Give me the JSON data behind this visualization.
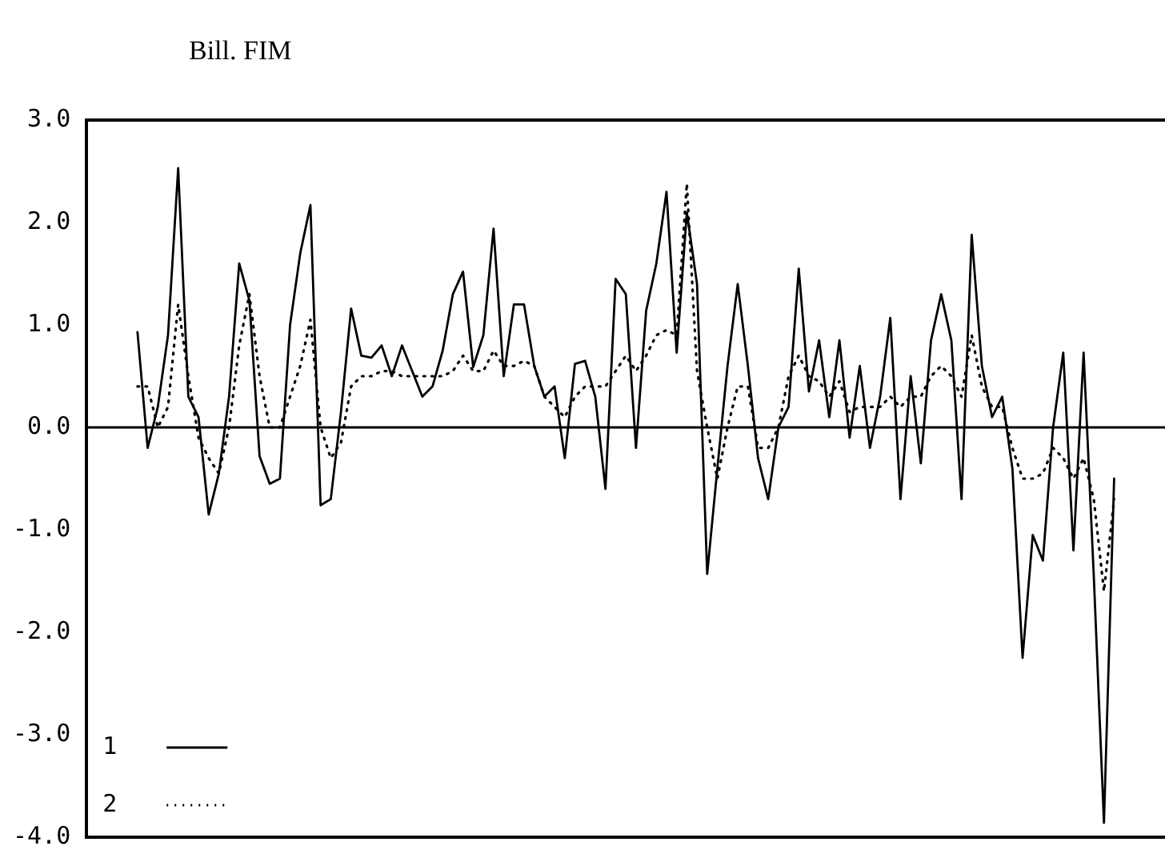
{
  "chart_data": {
    "type": "line",
    "title": "Bill. FIM",
    "categories": [
      null,
      null,
      null,
      null,
      null,
      null,
      null,
      null,
      null,
      null,
      null,
      null,
      null,
      null,
      null,
      null,
      null,
      null,
      null,
      null,
      null,
      null,
      null,
      null,
      null,
      null,
      null,
      null,
      null,
      null,
      null,
      null,
      null,
      null,
      null,
      null,
      null,
      null,
      null,
      null,
      null,
      null,
      null,
      null,
      null,
      null,
      null,
      null,
      null,
      null,
      null,
      null,
      null,
      null,
      null,
      null,
      null,
      null,
      null,
      null,
      null,
      null,
      null,
      null,
      null,
      null,
      null,
      null,
      null,
      null,
      null,
      null,
      null,
      null,
      null,
      null,
      null,
      null,
      null,
      null,
      null,
      null,
      null,
      null,
      null,
      null,
      null,
      null,
      null,
      null,
      null,
      null,
      null,
      null,
      null,
      null,
      null,
      null,
      null,
      null,
      null,
      null,
      null,
      null,
      null,
      null,
      null
    ],
    "series": [
      {
        "name": "1",
        "color": "#000000",
        "line_style": "solid",
        "values": [
          null,
          null,
          null,
          null,
          null,
          0.93,
          -0.2,
          0.2,
          0.9,
          2.53,
          0.3,
          0.1,
          -0.85,
          -0.45,
          0.3,
          1.6,
          1.24,
          -0.28,
          -0.55,
          -0.5,
          1.0,
          1.7,
          2.17,
          -0.76,
          -0.7,
          0.15,
          1.16,
          0.7,
          0.68,
          0.8,
          0.5,
          0.8,
          0.55,
          0.3,
          0.4,
          0.75,
          1.3,
          1.52,
          0.59,
          0.9,
          1.94,
          0.5,
          1.2,
          1.2,
          0.6,
          0.3,
          0.4,
          -0.3,
          0.62,
          0.65,
          0.3,
          -0.6,
          1.45,
          1.3,
          -0.2,
          1.14,
          1.6,
          2.3,
          0.73,
          2.1,
          1.4,
          -1.43,
          -0.4,
          0.6,
          1.4,
          0.6,
          -0.3,
          -0.7,
          0.0,
          0.2,
          1.55,
          0.35,
          0.85,
          0.1,
          0.85,
          -0.1,
          0.6,
          -0.2,
          0.3,
          1.07,
          -0.7,
          0.5,
          -0.35,
          0.85,
          1.3,
          0.85,
          -0.7,
          1.88,
          0.6,
          0.1,
          0.3,
          -0.4,
          -2.25,
          -1.05,
          -1.3,
          0.0,
          0.73,
          -1.2,
          0.73,
          -1.45,
          -3.86,
          -0.5,
          null,
          null,
          null,
          null,
          null
        ]
      },
      {
        "name": "2",
        "color": "#000000",
        "line_style": "dotted",
        "values": [
          null,
          null,
          null,
          null,
          null,
          0.4,
          0.4,
          0.0,
          0.2,
          1.2,
          0.5,
          -0.1,
          -0.3,
          -0.45,
          0.0,
          0.8,
          1.3,
          0.5,
          0.0,
          0.0,
          0.3,
          0.6,
          1.05,
          0.0,
          -0.3,
          -0.15,
          0.4,
          0.5,
          0.5,
          0.55,
          0.55,
          0.5,
          0.5,
          0.5,
          0.5,
          0.5,
          0.55,
          0.7,
          0.55,
          0.55,
          0.75,
          0.6,
          0.6,
          0.65,
          0.6,
          0.3,
          0.2,
          0.1,
          0.3,
          0.4,
          0.4,
          0.4,
          0.55,
          0.7,
          0.55,
          0.7,
          0.9,
          0.95,
          0.9,
          2.38,
          0.55,
          0.0,
          -0.5,
          0.0,
          0.4,
          0.4,
          -0.2,
          -0.2,
          0.0,
          0.5,
          0.7,
          0.5,
          0.45,
          0.3,
          0.45,
          0.15,
          0.2,
          0.2,
          0.2,
          0.3,
          0.2,
          0.3,
          0.3,
          0.5,
          0.6,
          0.5,
          0.3,
          0.9,
          0.4,
          0.2,
          0.2,
          -0.2,
          -0.5,
          -0.5,
          -0.45,
          -0.2,
          -0.3,
          -0.5,
          -0.3,
          -0.7,
          -1.6,
          -0.7,
          null,
          null,
          null,
          null,
          null
        ]
      }
    ],
    "ylim": [
      -4,
      3
    ],
    "yticks": [
      {
        "value": 3,
        "label": "3.0"
      },
      {
        "value": 2,
        "label": "2.0"
      },
      {
        "value": 1,
        "label": "1.0"
      },
      {
        "value": 0,
        "label": "0.0"
      },
      {
        "value": -1,
        "label": "-1.0"
      },
      {
        "value": -2,
        "label": "-2.0"
      },
      {
        "value": -3,
        "label": "-3.0"
      },
      {
        "value": -4,
        "label": "-4.0"
      }
    ],
    "ref_lines": [
      {
        "axis": "y",
        "value": 0
      }
    ],
    "tick_labels": "y",
    "grid": false,
    "legend": "bottom left",
    "marker": "none"
  }
}
